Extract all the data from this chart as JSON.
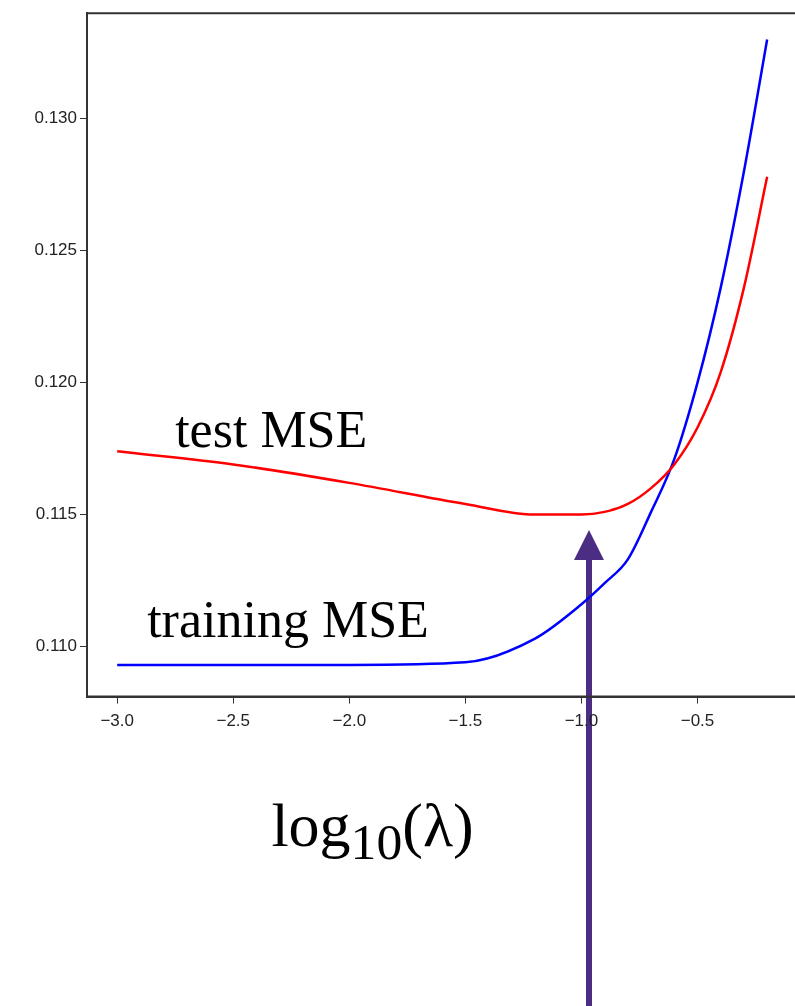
{
  "chart_data": {
    "type": "line",
    "xlabel": "log$_{10}$(λ)",
    "xlim": [
      -3.13,
      -0.08
    ],
    "xticks": [
      {
        "value": -3,
        "label": "−3.0"
      },
      {
        "value": -2.5,
        "label": "−2.5"
      },
      {
        "value": -2,
        "label": "−2.0"
      },
      {
        "value": -1.5,
        "label": "−1.5"
      },
      {
        "value": -1,
        "label": "−1.0"
      },
      {
        "value": -0.5,
        "label": "−0.5"
      }
    ],
    "ylim": [
      0.1081,
      0.134
    ],
    "yticks": [
      {
        "value": 0.11,
        "label": "0.110"
      },
      {
        "value": 0.115,
        "label": "0.115"
      },
      {
        "value": 0.12,
        "label": "0.120"
      },
      {
        "value": 0.125,
        "label": "0.125"
      },
      {
        "value": 0.13,
        "label": "0.130"
      }
    ],
    "grid": false,
    "legend": false,
    "marker": "none",
    "line_style": "solid",
    "series": [
      {
        "name": "test MSE",
        "color": "#ff0000",
        "x": [
          -3,
          -2.5,
          -2,
          -1.5,
          -1.2,
          -1,
          -0.9,
          -0.8,
          -0.7,
          -0.6,
          -0.5,
          -0.4,
          -0.3,
          -0.2
        ],
        "values": [
          0.1174,
          0.1169,
          0.1162,
          0.1154,
          0.115,
          0.115,
          0.1151,
          0.1154,
          0.116,
          0.1169,
          0.1183,
          0.1204,
          0.1236,
          0.1278
        ]
      },
      {
        "name": "training MSE",
        "color": "#0000ff",
        "x": [
          -3,
          -2.5,
          -2,
          -1.5,
          -1.2,
          -1,
          -0.9,
          -0.8,
          -0.7,
          -0.6,
          -0.5,
          -0.4,
          -0.3,
          -0.2
        ],
        "values": [
          0.1093,
          0.1093,
          0.1093,
          0.1094,
          0.1103,
          0.1116,
          0.1124,
          0.1133,
          0.1151,
          0.1171,
          0.12,
          0.1236,
          0.128,
          0.133
        ]
      }
    ]
  }
}
